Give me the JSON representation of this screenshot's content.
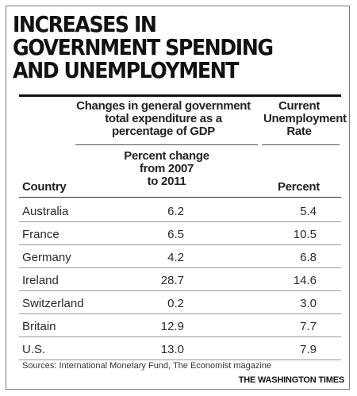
{
  "chart_data": {
    "type": "table",
    "title_lines": [
      "INCREASES IN",
      "GOVERNMENT SPENDING",
      "AND UNEMPLOYMENT"
    ],
    "group_header": [
      "Changes in general government",
      "total expenditure as a",
      "percentage of GDP"
    ],
    "unemployment_header": [
      "Current",
      "Unemployment",
      "Rate"
    ],
    "columns": {
      "country": "Country",
      "expenditure": [
        "Percent change",
        "from 2007",
        "to 2011"
      ],
      "unemployment": "Percent"
    },
    "rows": [
      {
        "country": "Australia",
        "expenditure": "6.2",
        "unemployment": "5.4"
      },
      {
        "country": "France",
        "expenditure": "6.5",
        "unemployment": "10.5"
      },
      {
        "country": "Germany",
        "expenditure": "4.2",
        "unemployment": "6.8"
      },
      {
        "country": "Ireland",
        "expenditure": "28.7",
        "unemployment": "14.6"
      },
      {
        "country": "Switzerland",
        "expenditure": "0.2",
        "unemployment": "3.0"
      },
      {
        "country": "Britain",
        "expenditure": "12.9",
        "unemployment": "7.7"
      },
      {
        "country": "U.S.",
        "expenditure": "13.0",
        "unemployment": "7.9"
      }
    ],
    "source": "Sources: International Monetary Fund, The Economist magazine",
    "credit": "THE WASHINGTON TIMES"
  }
}
